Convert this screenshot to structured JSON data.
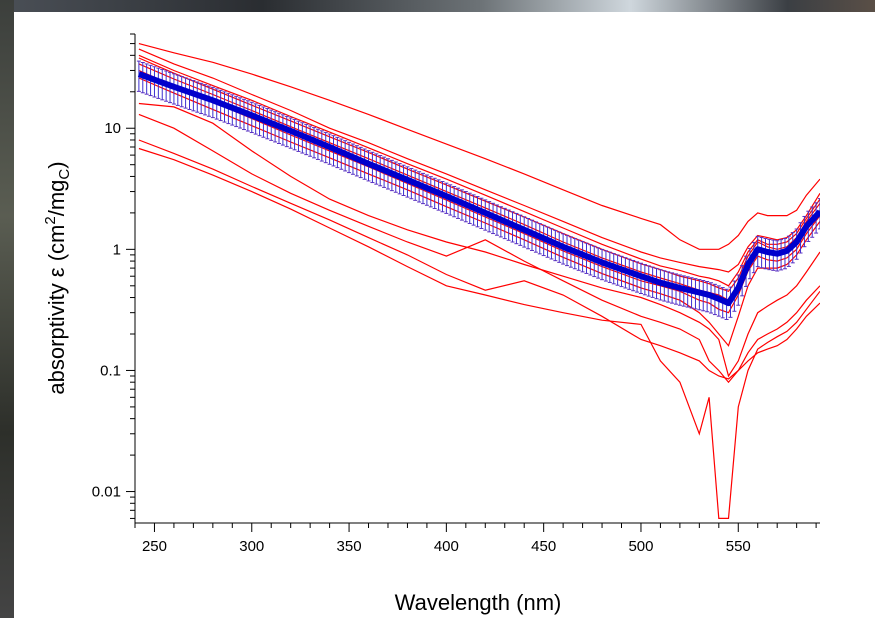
{
  "chart_data": {
    "type": "line",
    "title": "",
    "xlabel": "Wavelength (nm)",
    "ylabel": {
      "prefix": "absorptivity ε (cm",
      "superscript": "2",
      "middle": "/mg",
      "subscript": "C",
      "suffix": ")"
    },
    "xlim": [
      240,
      592
    ],
    "ylim": [
      0.0055,
      60
    ],
    "yscale": "log",
    "grid": false,
    "legend": "none",
    "x_ticks": [
      250,
      300,
      350,
      400,
      450,
      500,
      550
    ],
    "x_tick_labels": [
      "250",
      "300",
      "350",
      "400",
      "450",
      "500",
      "550"
    ],
    "y_ticks": [
      10,
      1,
      0.1,
      0.01
    ],
    "y_tick_labels": [
      "10",
      "1",
      "0.1",
      "0.01"
    ],
    "x": [
      242,
      260,
      280,
      300,
      320,
      340,
      360,
      380,
      400,
      420,
      440,
      460,
      480,
      500,
      510,
      520,
      530,
      535,
      540,
      545,
      550,
      555,
      560,
      565,
      570,
      575,
      580,
      585,
      592
    ],
    "series": [
      {
        "color": "#ff0000",
        "values": [
          50,
          42,
          35,
          28,
          22,
          17,
          13,
          9.8,
          7.4,
          5.6,
          4.2,
          3.1,
          2.3,
          1.8,
          1.6,
          1.2,
          1.0,
          1.0,
          1.0,
          1.1,
          1.3,
          1.7,
          2.0,
          1.9,
          1.9,
          1.9,
          2.1,
          2.8,
          3.8
        ]
      },
      {
        "color": "#ff0000",
        "values": [
          45,
          34,
          26,
          19,
          14,
          10,
          7.6,
          5.6,
          4.2,
          3.1,
          2.3,
          1.7,
          1.25,
          0.95,
          0.85,
          0.78,
          0.72,
          0.7,
          0.68,
          0.65,
          0.75,
          1.05,
          1.3,
          1.25,
          1.2,
          1.25,
          1.45,
          1.9,
          2.9
        ]
      },
      {
        "color": "#ff0000",
        "values": [
          40,
          30,
          22.5,
          17,
          12.5,
          9.3,
          6.9,
          5.1,
          3.8,
          2.8,
          2.05,
          1.5,
          1.1,
          0.83,
          0.73,
          0.67,
          0.6,
          0.58,
          0.55,
          0.5,
          0.65,
          0.95,
          1.2,
          1.1,
          1.1,
          1.15,
          1.35,
          1.8,
          2.6
        ]
      },
      {
        "color": "#ff0000",
        "values": [
          38,
          28.5,
          21,
          15.5,
          11.5,
          8.5,
          6.3,
          4.6,
          3.4,
          2.5,
          1.85,
          1.35,
          1.0,
          0.76,
          0.68,
          0.6,
          0.55,
          0.52,
          0.48,
          0.45,
          0.58,
          0.88,
          1.15,
          1.05,
          1.0,
          1.05,
          1.25,
          1.7,
          2.4
        ]
      },
      {
        "color": "#ff0000",
        "values": [
          34,
          25.5,
          19,
          14,
          10.3,
          7.6,
          5.6,
          4.1,
          3.0,
          2.2,
          1.6,
          1.15,
          0.85,
          0.65,
          0.58,
          0.52,
          0.46,
          0.44,
          0.42,
          0.38,
          0.5,
          0.78,
          1.0,
          0.92,
          0.9,
          0.95,
          1.1,
          1.5,
          2.1
        ]
      },
      {
        "color": "#ff0000",
        "values": [
          30,
          22.5,
          16.5,
          12,
          8.8,
          6.5,
          4.8,
          3.5,
          2.55,
          1.85,
          1.35,
          0.97,
          0.72,
          0.55,
          0.5,
          0.45,
          0.38,
          0.36,
          0.32,
          0.3,
          0.42,
          0.66,
          0.88,
          0.82,
          0.8,
          0.85,
          1.0,
          1.35,
          1.9
        ]
      },
      {
        "color": "#ff0000",
        "values": [
          26,
          19.5,
          14.3,
          10.5,
          7.7,
          5.7,
          4.2,
          3.1,
          2.25,
          1.65,
          1.2,
          0.86,
          0.63,
          0.48,
          0.43,
          0.38,
          0.3,
          0.25,
          0.2,
          0.16,
          0.28,
          0.5,
          0.7,
          0.7,
          0.7,
          0.75,
          0.9,
          1.2,
          1.7
        ]
      },
      {
        "color": "#ff0000",
        "values": [
          16,
          15,
          11,
          6.5,
          4.0,
          2.6,
          1.9,
          1.45,
          1.15,
          0.95,
          0.75,
          0.6,
          0.48,
          0.4,
          0.35,
          0.3,
          0.25,
          0.22,
          0.18,
          0.09,
          0.12,
          0.2,
          0.3,
          0.34,
          0.38,
          0.42,
          0.5,
          0.65,
          0.95
        ]
      },
      {
        "color": "#ff0000",
        "values": [
          13,
          10,
          6.5,
          4.2,
          2.9,
          2.1,
          1.55,
          1.15,
          0.88,
          1.2,
          0.8,
          0.55,
          0.38,
          0.28,
          0.25,
          0.22,
          0.18,
          0.12,
          0.1,
          0.08,
          0.1,
          0.14,
          0.18,
          0.2,
          0.22,
          0.25,
          0.3,
          0.38,
          0.5
        ]
      },
      {
        "color": "#ff0000",
        "values": [
          8,
          6.2,
          4.6,
          3.3,
          2.4,
          1.75,
          1.25,
          0.9,
          0.62,
          0.46,
          0.55,
          0.42,
          0.28,
          0.18,
          0.16,
          0.14,
          0.12,
          0.1,
          0.09,
          0.085,
          0.1,
          0.12,
          0.14,
          0.15,
          0.16,
          0.18,
          0.22,
          0.28,
          0.36
        ]
      },
      {
        "color": "#ff0000",
        "values": [
          6.8,
          5.5,
          4.1,
          3.0,
          2.15,
          1.5,
          1.05,
          0.72,
          0.5,
          0.42,
          0.35,
          0.3,
          0.26,
          0.24,
          0.12,
          0.08,
          0.03,
          0.06,
          0.006,
          0.006,
          0.05,
          0.1,
          0.15,
          0.17,
          0.19,
          0.21,
          0.25,
          0.32,
          0.45
        ]
      }
    ],
    "mean": {
      "color": "#0000cc",
      "values": [
        28,
        22,
        17,
        12.8,
        9.5,
        7.0,
        5.1,
        3.75,
        2.75,
        2.0,
        1.45,
        1.05,
        0.78,
        0.6,
        0.53,
        0.48,
        0.44,
        0.42,
        0.39,
        0.36,
        0.48,
        0.75,
        1.0,
        0.95,
        0.92,
        0.97,
        1.15,
        1.55,
        2.05
      ],
      "error_fraction": 0.28
    }
  }
}
